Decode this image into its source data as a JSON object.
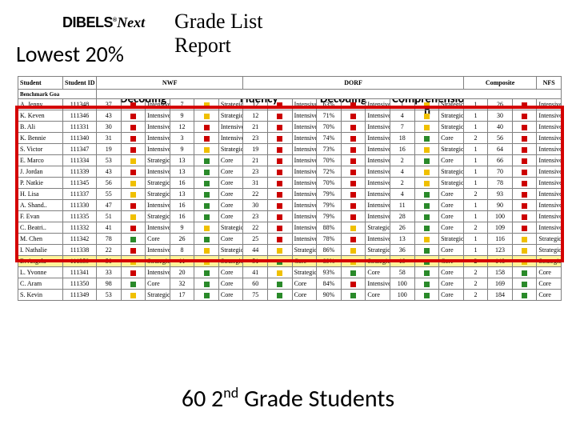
{
  "logo": {
    "brand": "DIBELS",
    "sub": "Next",
    "reg": "®"
  },
  "title_l1": "Grade List",
  "title_l2": "Report",
  "lowest": "Lowest 20%",
  "category_labels": {
    "decoding1": "Decoding",
    "fluency": "Fluency",
    "decoding2": "Decoding",
    "comprehension_l1": "Comprehensio",
    "comprehension_l2": "n"
  },
  "footer_pre": "60 2",
  "footer_sup": "nd",
  "footer_post": " Grade Students",
  "top_headers": {
    "student": "Student",
    "id": "Student ID",
    "nwf": "NWF",
    "dorf": "DORF",
    "composite": "Composite",
    "nfs": "NFS"
  },
  "sub_headers": {
    "benchmark": "Benchmark Goa"
  },
  "colors": {
    "intensive": "#cc0000",
    "strategic": "#f0c000",
    "core": "#2a8a2a"
  },
  "rows": [
    {
      "name": "A. Jenny",
      "id": "111348",
      "n1": "37",
      "s1": "Intensive",
      "n2": "7",
      "s2": "Strategic",
      "n3": "12",
      "s3": "Intensive",
      "pct": "63%",
      "s4": "Intensive",
      "n4": "1",
      "s5": "Strategic",
      "n5": "1",
      "c": "26",
      "cs": "Intensive"
    },
    {
      "name": "K. Keven",
      "id": "111346",
      "n1": "43",
      "s1": "Intensive",
      "n2": "9",
      "s2": "Strategic",
      "n3": "12",
      "s3": "Intensive",
      "pct": "71%",
      "s4": "Intensive",
      "n4": "4",
      "s5": "Strategic",
      "n5": "1",
      "c": "30",
      "cs": "Intensive"
    },
    {
      "name": "B. Ali",
      "id": "111331",
      "n1": "30",
      "s1": "Intensive",
      "n2": "12",
      "s2": "Intensive",
      "n3": "21",
      "s3": "Intensive",
      "pct": "70%",
      "s4": "Intensive",
      "n4": "7",
      "s5": "Strategic",
      "n5": "1",
      "c": "40",
      "cs": "Intensive"
    },
    {
      "name": "K. Bennie",
      "id": "111340",
      "n1": "31",
      "s1": "Intensive",
      "n2": "3",
      "s2": "Intensive",
      "n3": "23",
      "s3": "Intensive",
      "pct": "74%",
      "s4": "Intensive",
      "n4": "18",
      "s5": "Core",
      "n5": "2",
      "c": "56",
      "cs": "Intensive"
    },
    {
      "name": "S. Victor",
      "id": "111347",
      "n1": "19",
      "s1": "Intensive",
      "n2": "9",
      "s2": "Strategic",
      "n3": "19",
      "s3": "Intensive",
      "pct": "73%",
      "s4": "Intensive",
      "n4": "16",
      "s5": "Strategic",
      "n5": "1",
      "c": "64",
      "cs": "Intensive"
    },
    {
      "name": "E. Marco",
      "id": "111334",
      "n1": "53",
      "s1": "Strategic",
      "n2": "13",
      "s2": "Core",
      "n3": "21",
      "s3": "Intensive",
      "pct": "70%",
      "s4": "Intensive",
      "n4": "2",
      "s5": "Core",
      "n5": "1",
      "c": "66",
      "cs": "Intensive"
    },
    {
      "name": "J. Jordan",
      "id": "111339",
      "n1": "43",
      "s1": "Intensive",
      "n2": "13",
      "s2": "Core",
      "n3": "23",
      "s3": "Intensive",
      "pct": "72%",
      "s4": "Intensive",
      "n4": "4",
      "s5": "Strategic",
      "n5": "1",
      "c": "70",
      "cs": "Intensive"
    },
    {
      "name": "P. Natkie",
      "id": "111345",
      "n1": "56",
      "s1": "Strategic",
      "n2": "16",
      "s2": "Core",
      "n3": "31",
      "s3": "Intensive",
      "pct": "70%",
      "s4": "Intensive",
      "n4": "2",
      "s5": "Strategic",
      "n5": "1",
      "c": "78",
      "cs": "Intensive"
    },
    {
      "name": "H. Lisa",
      "id": "111337",
      "n1": "55",
      "s1": "Strategic",
      "n2": "13",
      "s2": "Core",
      "n3": "22",
      "s3": "Intensive",
      "pct": "79%",
      "s4": "Intensive",
      "n4": "4",
      "s5": "Core",
      "n5": "2",
      "c": "93",
      "cs": "Intensive"
    },
    {
      "name": "A. Shand..",
      "id": "111330",
      "n1": "47",
      "s1": "Intensive",
      "n2": "16",
      "s2": "Core",
      "n3": "30",
      "s3": "Intensive",
      "pct": "79%",
      "s4": "Intensive",
      "n4": "11",
      "s5": "Core",
      "n5": "1",
      "c": "90",
      "cs": "Intensive"
    },
    {
      "name": "F. Evan",
      "id": "111335",
      "n1": "51",
      "s1": "Strategic",
      "n2": "16",
      "s2": "Core",
      "n3": "23",
      "s3": "Intensive",
      "pct": "79%",
      "s4": "Intensive",
      "n4": "28",
      "s5": "Core",
      "n5": "1",
      "c": "100",
      "cs": "Intensive"
    },
    {
      "name": "C. Beatri..",
      "id": "111332",
      "n1": "41",
      "s1": "Intensive",
      "n2": "9",
      "s2": "Strategic",
      "n3": "22",
      "s3": "Intensive",
      "pct": "88%",
      "s4": "Strategic",
      "n4": "26",
      "s5": "Core",
      "n5": "2",
      "c": "109",
      "cs": "Intensive"
    },
    {
      "name": "M. Chen",
      "id": "111342",
      "n1": "78",
      "s1": "Core",
      "n2": "26",
      "s2": "Core",
      "n3": "25",
      "s3": "Intensive",
      "pct": "78%",
      "s4": "Intensive",
      "n4": "13",
      "s5": "Strategic",
      "n5": "1",
      "c": "116",
      "cs": "Strategic"
    },
    {
      "name": "I. Nathalie",
      "id": "111338",
      "n1": "22",
      "s1": "Intensive",
      "n2": "8",
      "s2": "Strategic",
      "n3": "44",
      "s3": "Strategic",
      "pct": "86%",
      "s4": "Strategic",
      "n4": "36",
      "s5": "Core",
      "n5": "1",
      "c": "123",
      "cs": "Strategic"
    },
    {
      "name": "D. Angela",
      "id": "111359",
      "n1": "50",
      "s1": "Strategic",
      "n2": "11",
      "s2": "Strategic",
      "n3": "51",
      "s3": "Core",
      "pct": "89%",
      "s4": "Strategic",
      "n4": "19",
      "s5": "Core",
      "n5": "2",
      "c": "148",
      "cs": "Strategic",
      "hl": true
    },
    {
      "name": "L. Yvonne",
      "id": "111341",
      "n1": "33",
      "s1": "Intensive",
      "n2": "20",
      "s2": "Core",
      "n3": "41",
      "s3": "Strategic",
      "pct": "93%",
      "s4": "Core",
      "n4": "58",
      "s5": "Core",
      "n5": "2",
      "c": "158",
      "cs": "Core"
    },
    {
      "name": "C. Aram",
      "id": "111350",
      "n1": "98",
      "s1": "Core",
      "n2": "32",
      "s2": "Core",
      "n3": "60",
      "s3": "Core",
      "pct": "84%",
      "s4": "Intensive",
      "n4": "100",
      "s5": "Core",
      "n5": "2",
      "c": "169",
      "cs": "Core"
    },
    {
      "name": "S. Kevin",
      "id": "111349",
      "n1": "53",
      "s1": "Strategic",
      "n2": "17",
      "s2": "Core",
      "n3": "75",
      "s3": "Core",
      "pct": "90%",
      "s4": "Core",
      "n4": "100",
      "s5": "Core",
      "n5": "2",
      "c": "184",
      "cs": "Core"
    }
  ]
}
